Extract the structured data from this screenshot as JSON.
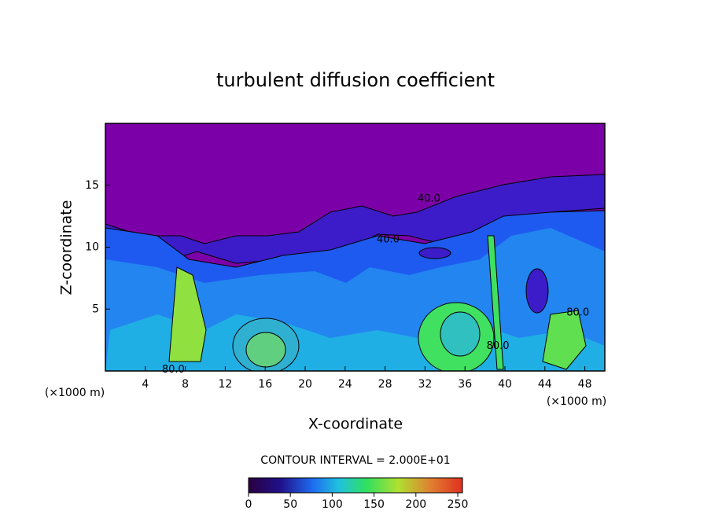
{
  "chart_data": {
    "type": "contour",
    "title": "turbulent diffusion coefficient",
    "xlabel": "X-coordinate",
    "ylabel": "Z-coordinate",
    "x_unit": "(×1000 m)",
    "xlim": [
      0,
      50
    ],
    "xticks": [
      4,
      8,
      12,
      16,
      20,
      24,
      28,
      32,
      36,
      40,
      44,
      48
    ],
    "ylim": [
      0,
      20
    ],
    "yticks": [
      5,
      10,
      15
    ],
    "contour_interval": "CONTOUR INTERVAL = 2.000E+01",
    "colorbar": {
      "lim": [
        0,
        250
      ],
      "ticks": [
        0,
        50,
        100,
        150,
        200,
        250
      ]
    },
    "contour_labels": [
      {
        "text": "80.0",
        "x": 6.8,
        "z": 0.1
      },
      {
        "text": "40.0",
        "x": 28.3,
        "z": 10.6
      },
      {
        "text": "40.0",
        "x": 32.4,
        "z": 13.9
      },
      {
        "text": "80.0",
        "x": 47.3,
        "z": 4.7
      },
      {
        "text": "80.0",
        "x": 39.3,
        "z": 2.0
      }
    ]
  }
}
